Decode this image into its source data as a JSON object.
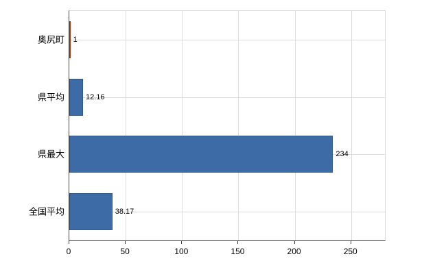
{
  "chart_data": {
    "type": "bar",
    "orientation": "horizontal",
    "title": "",
    "xlabel": "",
    "ylabel": "",
    "categories": [
      "奥尻町",
      "県平均",
      "県最大",
      "全国平均"
    ],
    "values": [
      1,
      12.16,
      234,
      38.17
    ],
    "value_labels": [
      "1",
      "12.16",
      "234",
      "38.17"
    ],
    "bar_fill_colors": [
      "#e0622d",
      "#3c6ba5",
      "#3c6ba5",
      "#3c6ba5"
    ],
    "bar_border_colors": [
      "#a04012",
      "#31588a",
      "#31588a",
      "#31588a"
    ],
    "xlim": [
      0,
      280
    ],
    "xticks": [
      0,
      50,
      100,
      150,
      200,
      250
    ],
    "grid": true,
    "legend": false
  },
  "colors": {
    "background": "#ffffff",
    "grid": "#dcdcdc",
    "axis": "#404040",
    "text": "#000000"
  }
}
